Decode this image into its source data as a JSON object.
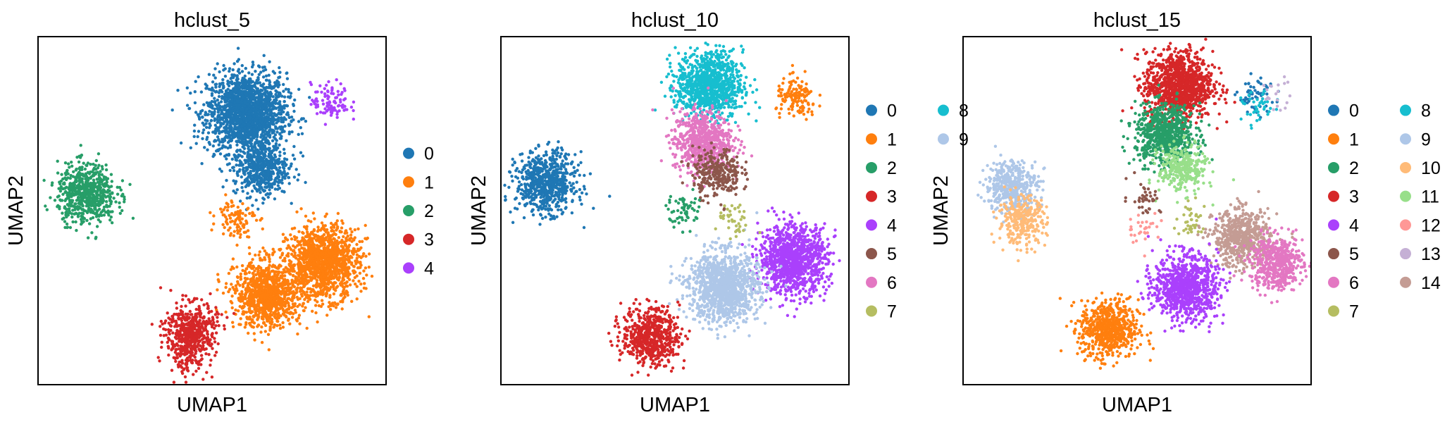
{
  "chart_data": [
    {
      "type": "scatter",
      "title": "hclust_5",
      "xlabel": "UMAP1",
      "ylabel": "UMAP2",
      "axis_ticks": false,
      "grid": false,
      "legend_position": "right",
      "categories": [
        "0",
        "1",
        "2",
        "3",
        "4"
      ],
      "colors": [
        "#1f77b4",
        "#ff7f0e",
        "#279e68",
        "#d62728",
        "#aa40fc"
      ],
      "points": [
        {
          "cluster": "0",
          "cx": 0.6,
          "cy": 0.78,
          "count": 1800
        },
        {
          "cluster": "0",
          "cx": 0.64,
          "cy": 0.62,
          "count": 500
        },
        {
          "cluster": "4",
          "cx": 0.84,
          "cy": 0.81,
          "count": 100
        },
        {
          "cluster": "2",
          "cx": 0.14,
          "cy": 0.55,
          "count": 650
        },
        {
          "cluster": "1",
          "cx": 0.82,
          "cy": 0.35,
          "count": 1300
        },
        {
          "cluster": "1",
          "cx": 0.66,
          "cy": 0.26,
          "count": 1000
        },
        {
          "cluster": "1",
          "cx": 0.57,
          "cy": 0.48,
          "count": 100
        },
        {
          "cluster": "3",
          "cx": 0.44,
          "cy": 0.16,
          "count": 420
        },
        {
          "cluster": "3",
          "cx": 0.43,
          "cy": 0.09,
          "count": 160
        }
      ]
    },
    {
      "type": "scatter",
      "title": "hclust_10",
      "xlabel": "UMAP1",
      "ylabel": "UMAP2",
      "axis_ticks": false,
      "grid": false,
      "legend_position": "right",
      "categories": [
        "0",
        "1",
        "2",
        "3",
        "4",
        "5",
        "6",
        "7",
        "8",
        "9"
      ],
      "colors": [
        "#1f77b4",
        "#ff7f0e",
        "#279e68",
        "#d62728",
        "#aa40fc",
        "#8c564b",
        "#e377c2",
        "#b5bd61",
        "#17becf",
        "#aec7e8"
      ],
      "points": [
        {
          "cluster": "8",
          "cx": 0.6,
          "cy": 0.86,
          "count": 1000
        },
        {
          "cluster": "6",
          "cx": 0.58,
          "cy": 0.7,
          "count": 700
        },
        {
          "cluster": "5",
          "cx": 0.62,
          "cy": 0.61,
          "count": 300
        },
        {
          "cluster": "1",
          "cx": 0.85,
          "cy": 0.82,
          "count": 140
        },
        {
          "cluster": "0",
          "cx": 0.13,
          "cy": 0.58,
          "count": 700
        },
        {
          "cluster": "4",
          "cx": 0.84,
          "cy": 0.36,
          "count": 1100
        },
        {
          "cluster": "9",
          "cx": 0.64,
          "cy": 0.28,
          "count": 1200
        },
        {
          "cluster": "3",
          "cx": 0.43,
          "cy": 0.14,
          "count": 600
        },
        {
          "cluster": "2",
          "cx": 0.53,
          "cy": 0.5,
          "count": 60
        },
        {
          "cluster": "7",
          "cx": 0.67,
          "cy": 0.47,
          "count": 40
        }
      ]
    },
    {
      "type": "scatter",
      "title": "hclust_15",
      "xlabel": "UMAP1",
      "ylabel": "UMAP2",
      "axis_ticks": false,
      "grid": false,
      "legend_position": "right",
      "categories": [
        "0",
        "1",
        "2",
        "3",
        "4",
        "5",
        "6",
        "7",
        "8",
        "9",
        "10",
        "11",
        "12",
        "13",
        "14"
      ],
      "colors": [
        "#1f77b4",
        "#ff7f0e",
        "#279e68",
        "#d62728",
        "#aa40fc",
        "#8c564b",
        "#e377c2",
        "#b5bd61",
        "#17becf",
        "#aec7e8",
        "#ffbb78",
        "#98df8a",
        "#ff9896",
        "#c5b0d5",
        "#c49c94"
      ],
      "points": [
        {
          "cluster": "3",
          "cx": 0.62,
          "cy": 0.86,
          "count": 1100
        },
        {
          "cluster": "2",
          "cx": 0.58,
          "cy": 0.72,
          "count": 700
        },
        {
          "cluster": "11",
          "cx": 0.63,
          "cy": 0.62,
          "count": 300
        },
        {
          "cluster": "0",
          "cx": 0.84,
          "cy": 0.83,
          "count": 60
        },
        {
          "cluster": "8",
          "cx": 0.85,
          "cy": 0.79,
          "count": 40
        },
        {
          "cluster": "13",
          "cx": 0.9,
          "cy": 0.84,
          "count": 20
        },
        {
          "cluster": "9",
          "cx": 0.14,
          "cy": 0.57,
          "count": 450
        },
        {
          "cluster": "10",
          "cx": 0.17,
          "cy": 0.47,
          "count": 300
        },
        {
          "cluster": "5",
          "cx": 0.52,
          "cy": 0.54,
          "count": 40
        },
        {
          "cluster": "12",
          "cx": 0.52,
          "cy": 0.45,
          "count": 30
        },
        {
          "cluster": "7",
          "cx": 0.66,
          "cy": 0.47,
          "count": 40
        },
        {
          "cluster": "14",
          "cx": 0.8,
          "cy": 0.42,
          "count": 600
        },
        {
          "cluster": "6",
          "cx": 0.9,
          "cy": 0.35,
          "count": 500
        },
        {
          "cluster": "4",
          "cx": 0.64,
          "cy": 0.28,
          "count": 900
        },
        {
          "cluster": "1",
          "cx": 0.42,
          "cy": 0.16,
          "count": 650
        }
      ]
    }
  ]
}
